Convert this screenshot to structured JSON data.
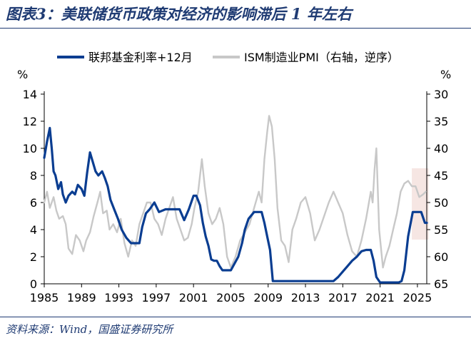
{
  "figure": {
    "title": "图表3：美联储货币政策对经济的影响滞后 1 年左右",
    "source": "资料来源：Wind，国盛证券研究所"
  },
  "chart_data": {
    "type": "line",
    "x_range": [
      1985,
      2026
    ],
    "x_ticks": [
      "1985",
      "1989",
      "1993",
      "1997",
      "2001",
      "2005",
      "2009",
      "2013",
      "2017",
      "2021",
      "2025"
    ],
    "y_left": {
      "label": "%",
      "range": [
        0,
        14
      ],
      "ticks": [
        "0",
        "2",
        "4",
        "6",
        "8",
        "10",
        "12",
        "14"
      ]
    },
    "y_right": {
      "label": "%",
      "range": [
        30,
        65
      ],
      "inverted": true,
      "ticks": [
        "30",
        "35",
        "40",
        "45",
        "50",
        "55",
        "60",
        "65"
      ]
    },
    "highlight": {
      "x_range": [
        2024.4,
        2026.2
      ],
      "color": "#f6e6e3"
    },
    "series": [
      {
        "name": "联邦基金利率+12月",
        "axis": "left",
        "color": "#0a3d91",
        "x": [
          1985.0,
          1985.3,
          1985.6,
          1985.8,
          1986.0,
          1986.2,
          1986.5,
          1986.8,
          1987.0,
          1987.3,
          1987.6,
          1988.0,
          1988.3,
          1988.6,
          1989.0,
          1989.3,
          1989.6,
          1989.9,
          1990.2,
          1990.5,
          1990.8,
          1991.2,
          1991.5,
          1991.8,
          1992.1,
          1992.5,
          1992.9,
          1993.3,
          1993.8,
          1994.3,
          1994.6,
          1994.9,
          1995.2,
          1995.5,
          1995.9,
          1996.3,
          1996.8,
          1997.3,
          1998.0,
          1998.5,
          1999.0,
          1999.5,
          2000.0,
          2000.5,
          2001.0,
          2001.3,
          2001.7,
          2002.0,
          2002.3,
          2002.6,
          2002.9,
          2003.2,
          2003.5,
          2003.8,
          2004.1,
          2004.5,
          2005.0,
          2005.4,
          2005.8,
          2006.2,
          2006.5,
          2006.9,
          2007.5,
          2008.0,
          2008.3,
          2008.6,
          2008.9,
          2009.2,
          2009.5,
          2010.0,
          2011.0,
          2012.0,
          2013.0,
          2014.0,
          2015.0,
          2016.0,
          2016.5,
          2017.0,
          2017.5,
          2018.0,
          2018.5,
          2019.0,
          2019.5,
          2020.0,
          2020.3,
          2020.6,
          2021.0,
          2021.5,
          2022.0,
          2022.5,
          2023.0,
          2023.3,
          2023.6,
          2024.0,
          2024.5,
          2025.0,
          2025.4,
          2025.8,
          2026.0
        ],
        "values": [
          9.3,
          10.5,
          11.5,
          10.0,
          8.3,
          8.0,
          7.0,
          7.5,
          6.6,
          6.0,
          6.5,
          6.8,
          6.6,
          7.3,
          7.0,
          6.5,
          8.2,
          9.7,
          9.0,
          8.3,
          8.0,
          8.3,
          7.8,
          7.2,
          6.2,
          5.5,
          4.8,
          4.0,
          3.4,
          3.0,
          3.0,
          3.0,
          3.0,
          4.2,
          5.2,
          5.5,
          6.0,
          5.3,
          5.5,
          5.5,
          5.5,
          5.5,
          4.7,
          5.5,
          6.5,
          6.5,
          5.8,
          4.5,
          3.5,
          2.8,
          1.8,
          1.7,
          1.7,
          1.3,
          1.0,
          1.0,
          1.0,
          1.5,
          2.0,
          3.0,
          4.0,
          4.8,
          5.3,
          5.3,
          5.3,
          4.5,
          3.5,
          2.5,
          0.2,
          0.2,
          0.2,
          0.2,
          0.2,
          0.2,
          0.2,
          0.2,
          0.5,
          0.9,
          1.3,
          1.7,
          2.0,
          2.4,
          2.5,
          2.5,
          1.7,
          0.5,
          0.1,
          0.1,
          0.1,
          0.1,
          0.1,
          0.2,
          1.0,
          3.5,
          5.3,
          5.3,
          5.3,
          4.5,
          4.5
        ]
      },
      {
        "name": "ISM制造业PMI（右轴，逆序）",
        "axis": "right",
        "color": "#c8c8c8",
        "x": [
          1985.0,
          1985.3,
          1985.6,
          1986.0,
          1986.3,
          1986.6,
          1987.0,
          1987.3,
          1987.6,
          1988.0,
          1988.4,
          1988.8,
          1989.2,
          1989.5,
          1989.9,
          1990.3,
          1990.7,
          1991.0,
          1991.3,
          1991.7,
          1992.0,
          1992.4,
          1992.8,
          1993.2,
          1993.6,
          1994.0,
          1994.4,
          1994.8,
          1995.2,
          1995.6,
          1996.0,
          1996.4,
          1996.8,
          1997.2,
          1997.6,
          1998.0,
          1998.4,
          1998.8,
          1999.2,
          1999.6,
          2000.0,
          2000.4,
          2000.8,
          2001.1,
          2001.5,
          2001.9,
          2002.2,
          2002.6,
          2003.0,
          2003.4,
          2003.8,
          2004.2,
          2004.6,
          2005.0,
          2005.5,
          2006.0,
          2006.5,
          2007.0,
          2007.5,
          2008.0,
          2008.3,
          2008.6,
          2008.9,
          2009.1,
          2009.4,
          2009.7,
          2010.0,
          2010.4,
          2010.8,
          2011.2,
          2011.6,
          2012.0,
          2012.5,
          2013.0,
          2013.5,
          2014.0,
          2014.5,
          2015.0,
          2015.5,
          2016.0,
          2016.5,
          2017.0,
          2017.5,
          2018.0,
          2018.5,
          2019.0,
          2019.5,
          2020.0,
          2020.2,
          2020.4,
          2020.6,
          2020.9,
          2021.3,
          2021.6,
          2022.0,
          2022.4,
          2022.8,
          2023.2,
          2023.6,
          2024.0,
          2024.4,
          2024.8,
          2025.2,
          2025.6,
          2025.9
        ],
        "values": [
          50.0,
          48.0,
          51.0,
          49.0,
          51.5,
          53.0,
          52.5,
          54.0,
          58.5,
          59.5,
          56.0,
          57.0,
          59.0,
          57.0,
          55.5,
          52.5,
          50.0,
          48.0,
          52.0,
          51.5,
          55.0,
          54.0,
          55.5,
          53.0,
          57.5,
          60.0,
          57.0,
          58.0,
          54.0,
          52.0,
          50.0,
          50.0,
          53.0,
          54.0,
          56.0,
          53.0,
          51.0,
          49.0,
          53.0,
          55.0,
          57.0,
          56.5,
          54.0,
          51.0,
          48.0,
          42.0,
          47.0,
          52.0,
          54.0,
          53.0,
          51.0,
          54.0,
          60.0,
          62.0,
          60.0,
          57.0,
          55.5,
          54.0,
          51.0,
          48.0,
          50.0,
          42.0,
          37.0,
          34.0,
          36.0,
          42.0,
          51.0,
          57.0,
          58.0,
          61.0,
          55.0,
          53.0,
          50.0,
          49.0,
          52.0,
          57.0,
          55.0,
          52.5,
          50.0,
          48.0,
          50.0,
          52.0,
          56.0,
          59.0,
          60.0,
          57.0,
          53.0,
          48.0,
          50.0,
          44.0,
          40.0,
          55.0,
          62.0,
          60.0,
          58.0,
          55.0,
          52.0,
          48.0,
          46.5,
          46.0,
          47.0,
          47.0,
          49.0,
          48.5,
          48.0
        ]
      }
    ]
  }
}
